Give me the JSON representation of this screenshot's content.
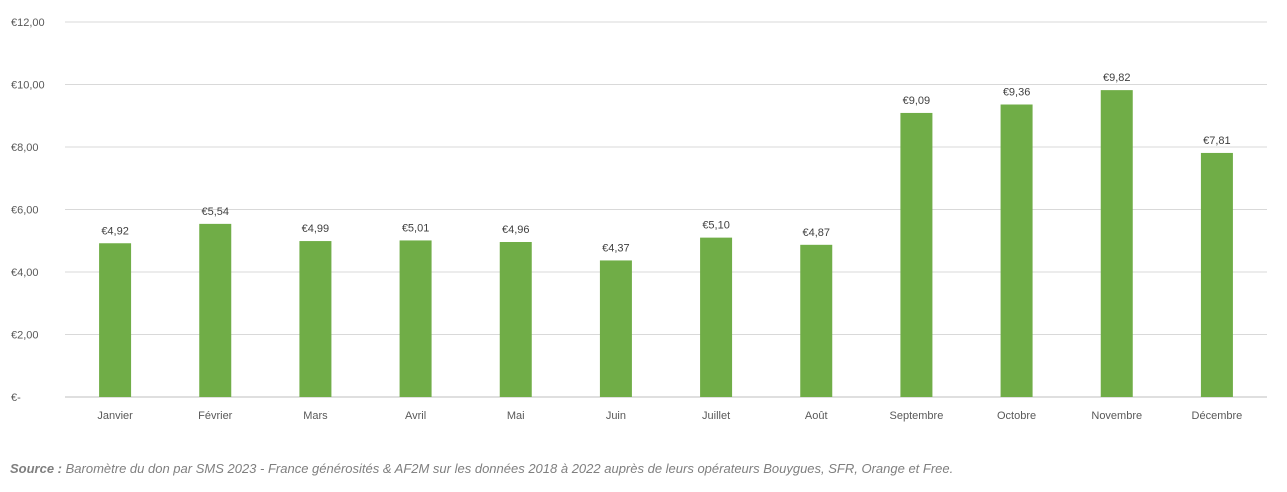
{
  "chart_data": {
    "type": "bar",
    "title": "",
    "xlabel": "",
    "ylabel": "",
    "categories": [
      "Janvier",
      "Février",
      "Mars",
      "Avril",
      "Mai",
      "Juin",
      "Juillet",
      "Août",
      "Septembre",
      "Octobre",
      "Novembre",
      "Décembre"
    ],
    "values": [
      4.92,
      5.54,
      4.99,
      5.01,
      4.96,
      4.37,
      5.1,
      4.87,
      9.09,
      9.36,
      9.82,
      7.81
    ],
    "data_labels": [
      "€4,92",
      "€5,54",
      "€4,99",
      "€5,01",
      "€4,96",
      "€4,37",
      "€5,10",
      "€4,87",
      "€9,09",
      "€9,36",
      "€9,82",
      "€7,81"
    ],
    "ylim": [
      0,
      12
    ],
    "yticks": [
      0,
      2,
      4,
      6,
      8,
      10,
      12
    ],
    "ytick_labels": [
      "€-",
      "€2,00",
      "€4,00",
      "€6,00",
      "€8,00",
      "€10,00",
      "€12,00"
    ],
    "grid": true,
    "legend": "none",
    "bar_color": "#70ad47",
    "grid_color": "#d9d9d9"
  },
  "source": {
    "label": "Source :",
    "text": " Baromètre du don par SMS 2023 - France générosités & AF2M sur les données 2018 à 2022 auprès de leurs opérateurs Bouygues, SFR, Orange et Free."
  }
}
